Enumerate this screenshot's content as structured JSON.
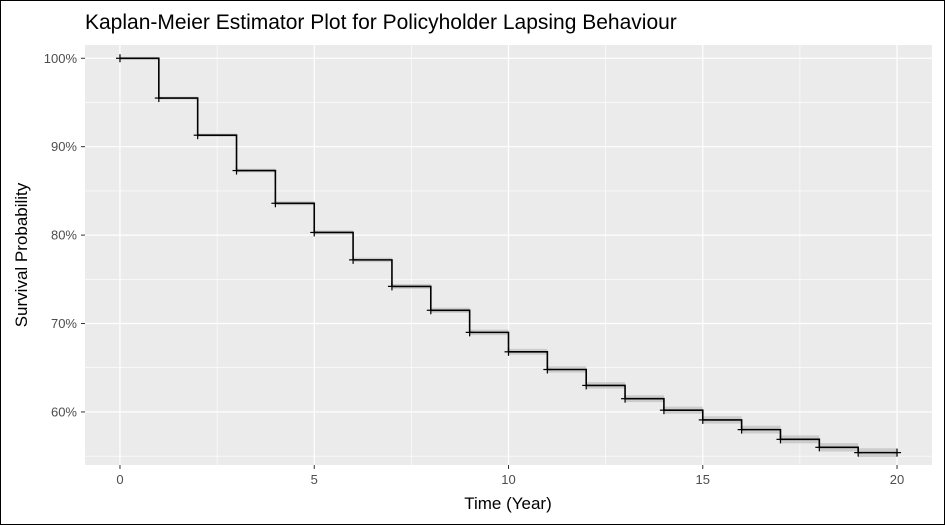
{
  "chart_data": {
    "type": "line",
    "step": true,
    "title": "Kaplan-Meier Estimator Plot for Policyholder Lapsing Behaviour",
    "xlabel": "Time (Year)",
    "ylabel": "Survival Probability",
    "xlim": [
      -0.9,
      20.9
    ],
    "ylim": [
      0.54,
      1.015
    ],
    "x_ticks": [
      0,
      5,
      10,
      15,
      20
    ],
    "x_tick_labels": [
      "0",
      "5",
      "10",
      "15",
      "20"
    ],
    "y_ticks": [
      0.6,
      0.7,
      0.8,
      0.9,
      1.0
    ],
    "y_tick_labels": [
      "60%",
      "70%",
      "80%",
      "90%",
      "100%"
    ],
    "grid": true,
    "background": "#ebebeb",
    "grid_color": "#ffffff",
    "line_color": "#000000",
    "confidence_band_color": "#bfbfbf",
    "censor_marks": true,
    "series": [
      {
        "x": [
          0,
          1,
          2,
          3,
          4,
          5,
          6,
          7,
          8,
          9,
          10,
          11,
          12,
          13,
          14,
          15,
          16,
          17,
          18,
          19,
          20
        ],
        "y": [
          1.0,
          0.955,
          0.913,
          0.873,
          0.836,
          0.803,
          0.772,
          0.742,
          0.715,
          0.69,
          0.668,
          0.648,
          0.63,
          0.615,
          0.602,
          0.591,
          0.58,
          0.569,
          0.56,
          0.554,
          0.554
        ]
      }
    ]
  }
}
